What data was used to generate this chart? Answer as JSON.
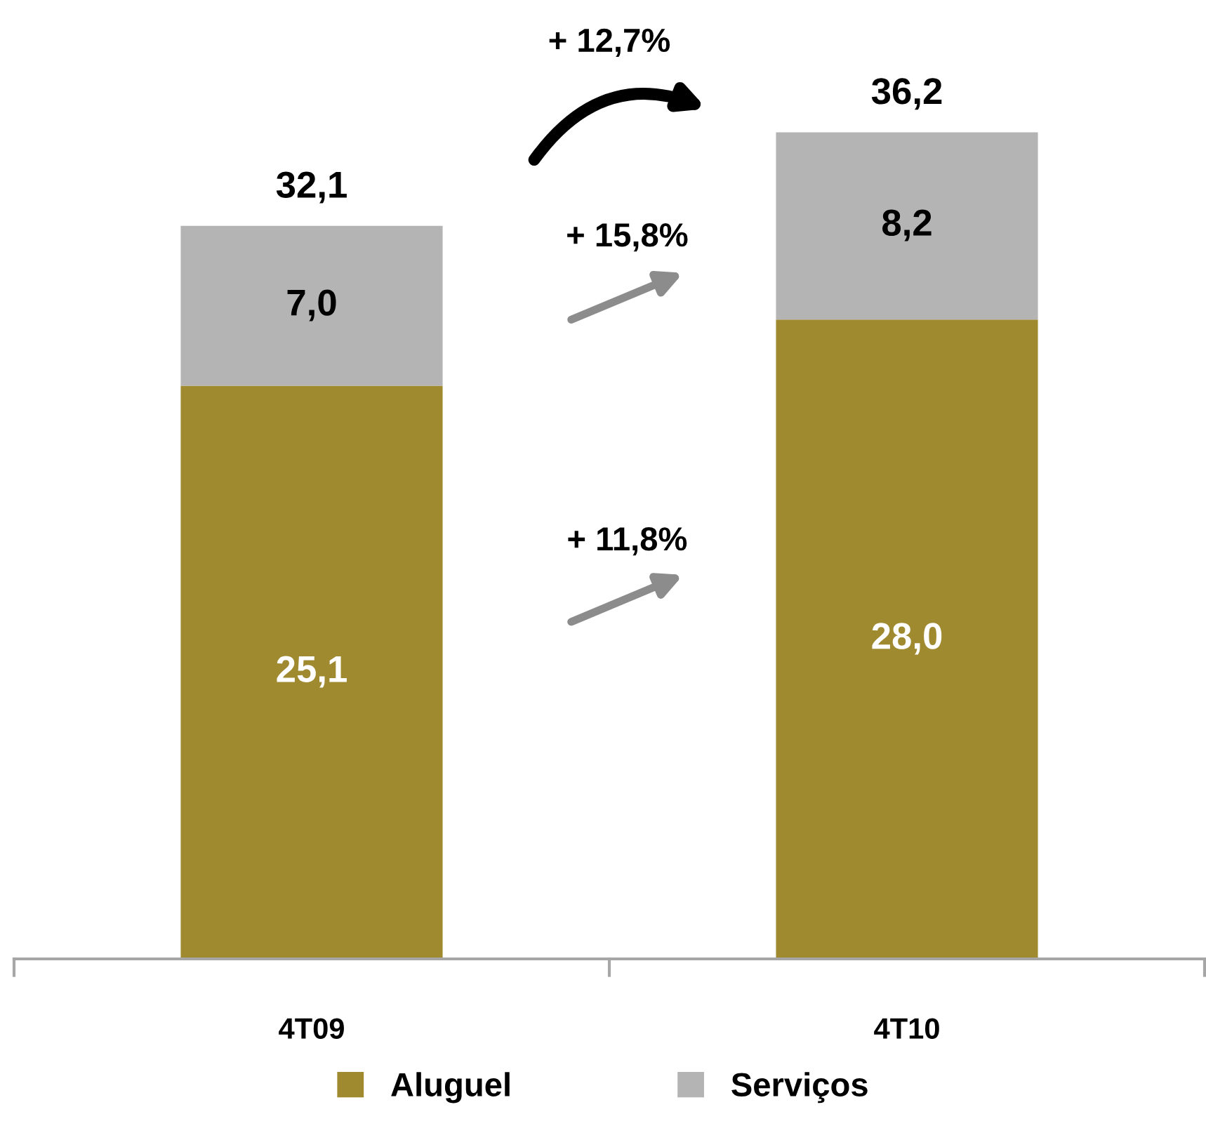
{
  "chart_data": {
    "type": "bar",
    "stacked": true,
    "categories": [
      "4T09",
      "4T10"
    ],
    "series": [
      {
        "name": "Aluguel",
        "color": "#a08a30",
        "values": [
          25.1,
          28.0
        ],
        "value_labels": [
          "25,1",
          "28,0"
        ]
      },
      {
        "name": "Serviços",
        "color": "#b4b4b4",
        "values": [
          7.0,
          8.2
        ],
        "value_labels": [
          "7,0",
          "8,2"
        ]
      }
    ],
    "totals": [
      "32,1",
      "36,2"
    ],
    "annotations": [
      "+ 12,7%",
      "+ 15,8%",
      "+ 11,8%"
    ],
    "tick_labels": "x",
    "grid": false,
    "legend": "bottom"
  }
}
